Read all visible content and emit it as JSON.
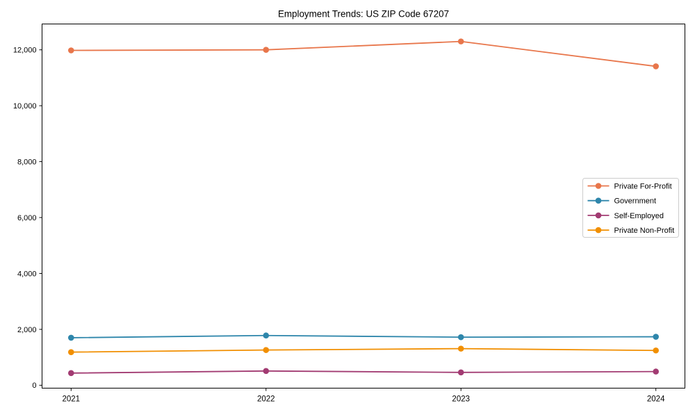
{
  "chart_data": {
    "type": "line",
    "title": "Employment Trends: US ZIP Code 67207",
    "x": [
      2021,
      2022,
      2023,
      2024
    ],
    "x_tick_labels": [
      "2021",
      "2022",
      "2023",
      "2024"
    ],
    "series": [
      {
        "name": "Private For-Profit",
        "color": "#E8764B",
        "values": [
          11980,
          12000,
          12300,
          11410
        ]
      },
      {
        "name": "Government",
        "color": "#2E86AB",
        "values": [
          1700,
          1780,
          1720,
          1735
        ]
      },
      {
        "name": "Self-Employed",
        "color": "#A23B72",
        "values": [
          435,
          510,
          460,
          490
        ]
      },
      {
        "name": "Private Non-Profit",
        "color": "#F18F01",
        "values": [
          1185,
          1260,
          1310,
          1245
        ]
      }
    ],
    "yticks": [
      0,
      2000,
      4000,
      6000,
      8000,
      10000,
      12000
    ],
    "ylim": [
      -104,
      12925
    ],
    "xlabel": "",
    "ylabel": "",
    "grid": false,
    "legend_position": "center right",
    "marker": "circle",
    "axis_color": "#000000",
    "text_color": "#000000",
    "legend_border_color": "#cccccc",
    "legend_background": "#ffffff",
    "plot_background": "#ffffff"
  }
}
